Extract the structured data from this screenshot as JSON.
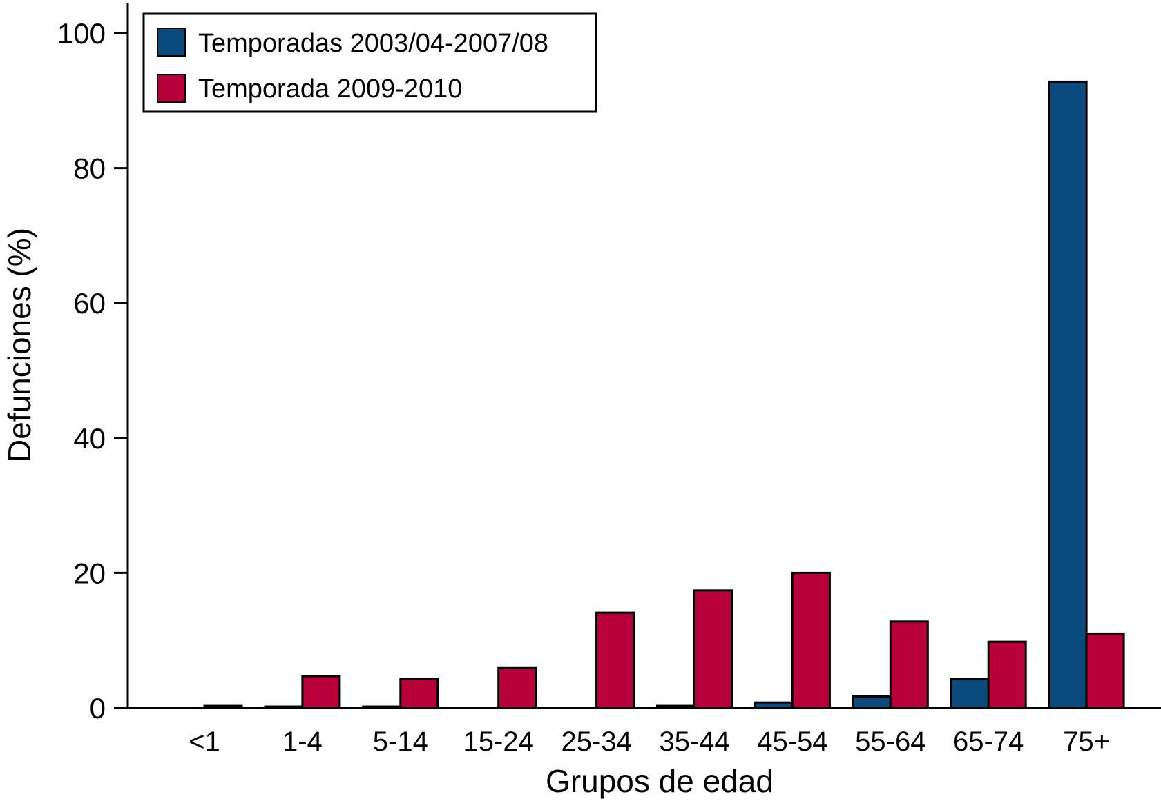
{
  "chart_data": {
    "type": "bar",
    "xlabel": "Grupos de edad",
    "ylabel": "Defunciones (%)",
    "ylim": [
      0,
      100
    ],
    "yticks": [
      0,
      20,
      40,
      60,
      80,
      100
    ],
    "categories": [
      "<1",
      "1-4",
      "5-14",
      "15-24",
      "25-34",
      "35-44",
      "45-54",
      "55-64",
      "65-74",
      "75+"
    ],
    "series": [
      {
        "name": "Temporadas 2003/04-2007/08",
        "color": "#0b4a7c",
        "values": [
          0,
          0.2,
          0.2,
          0,
          0,
          0.3,
          0.8,
          1.7,
          4.3,
          92.8
        ]
      },
      {
        "name": "Temporada 2009-2010",
        "color": "#b8003a",
        "values": [
          0.3,
          4.7,
          4.3,
          5.9,
          14.1,
          17.4,
          20.0,
          12.8,
          9.8,
          11.0
        ]
      }
    ],
    "legend": "top-left",
    "grid": false
  }
}
